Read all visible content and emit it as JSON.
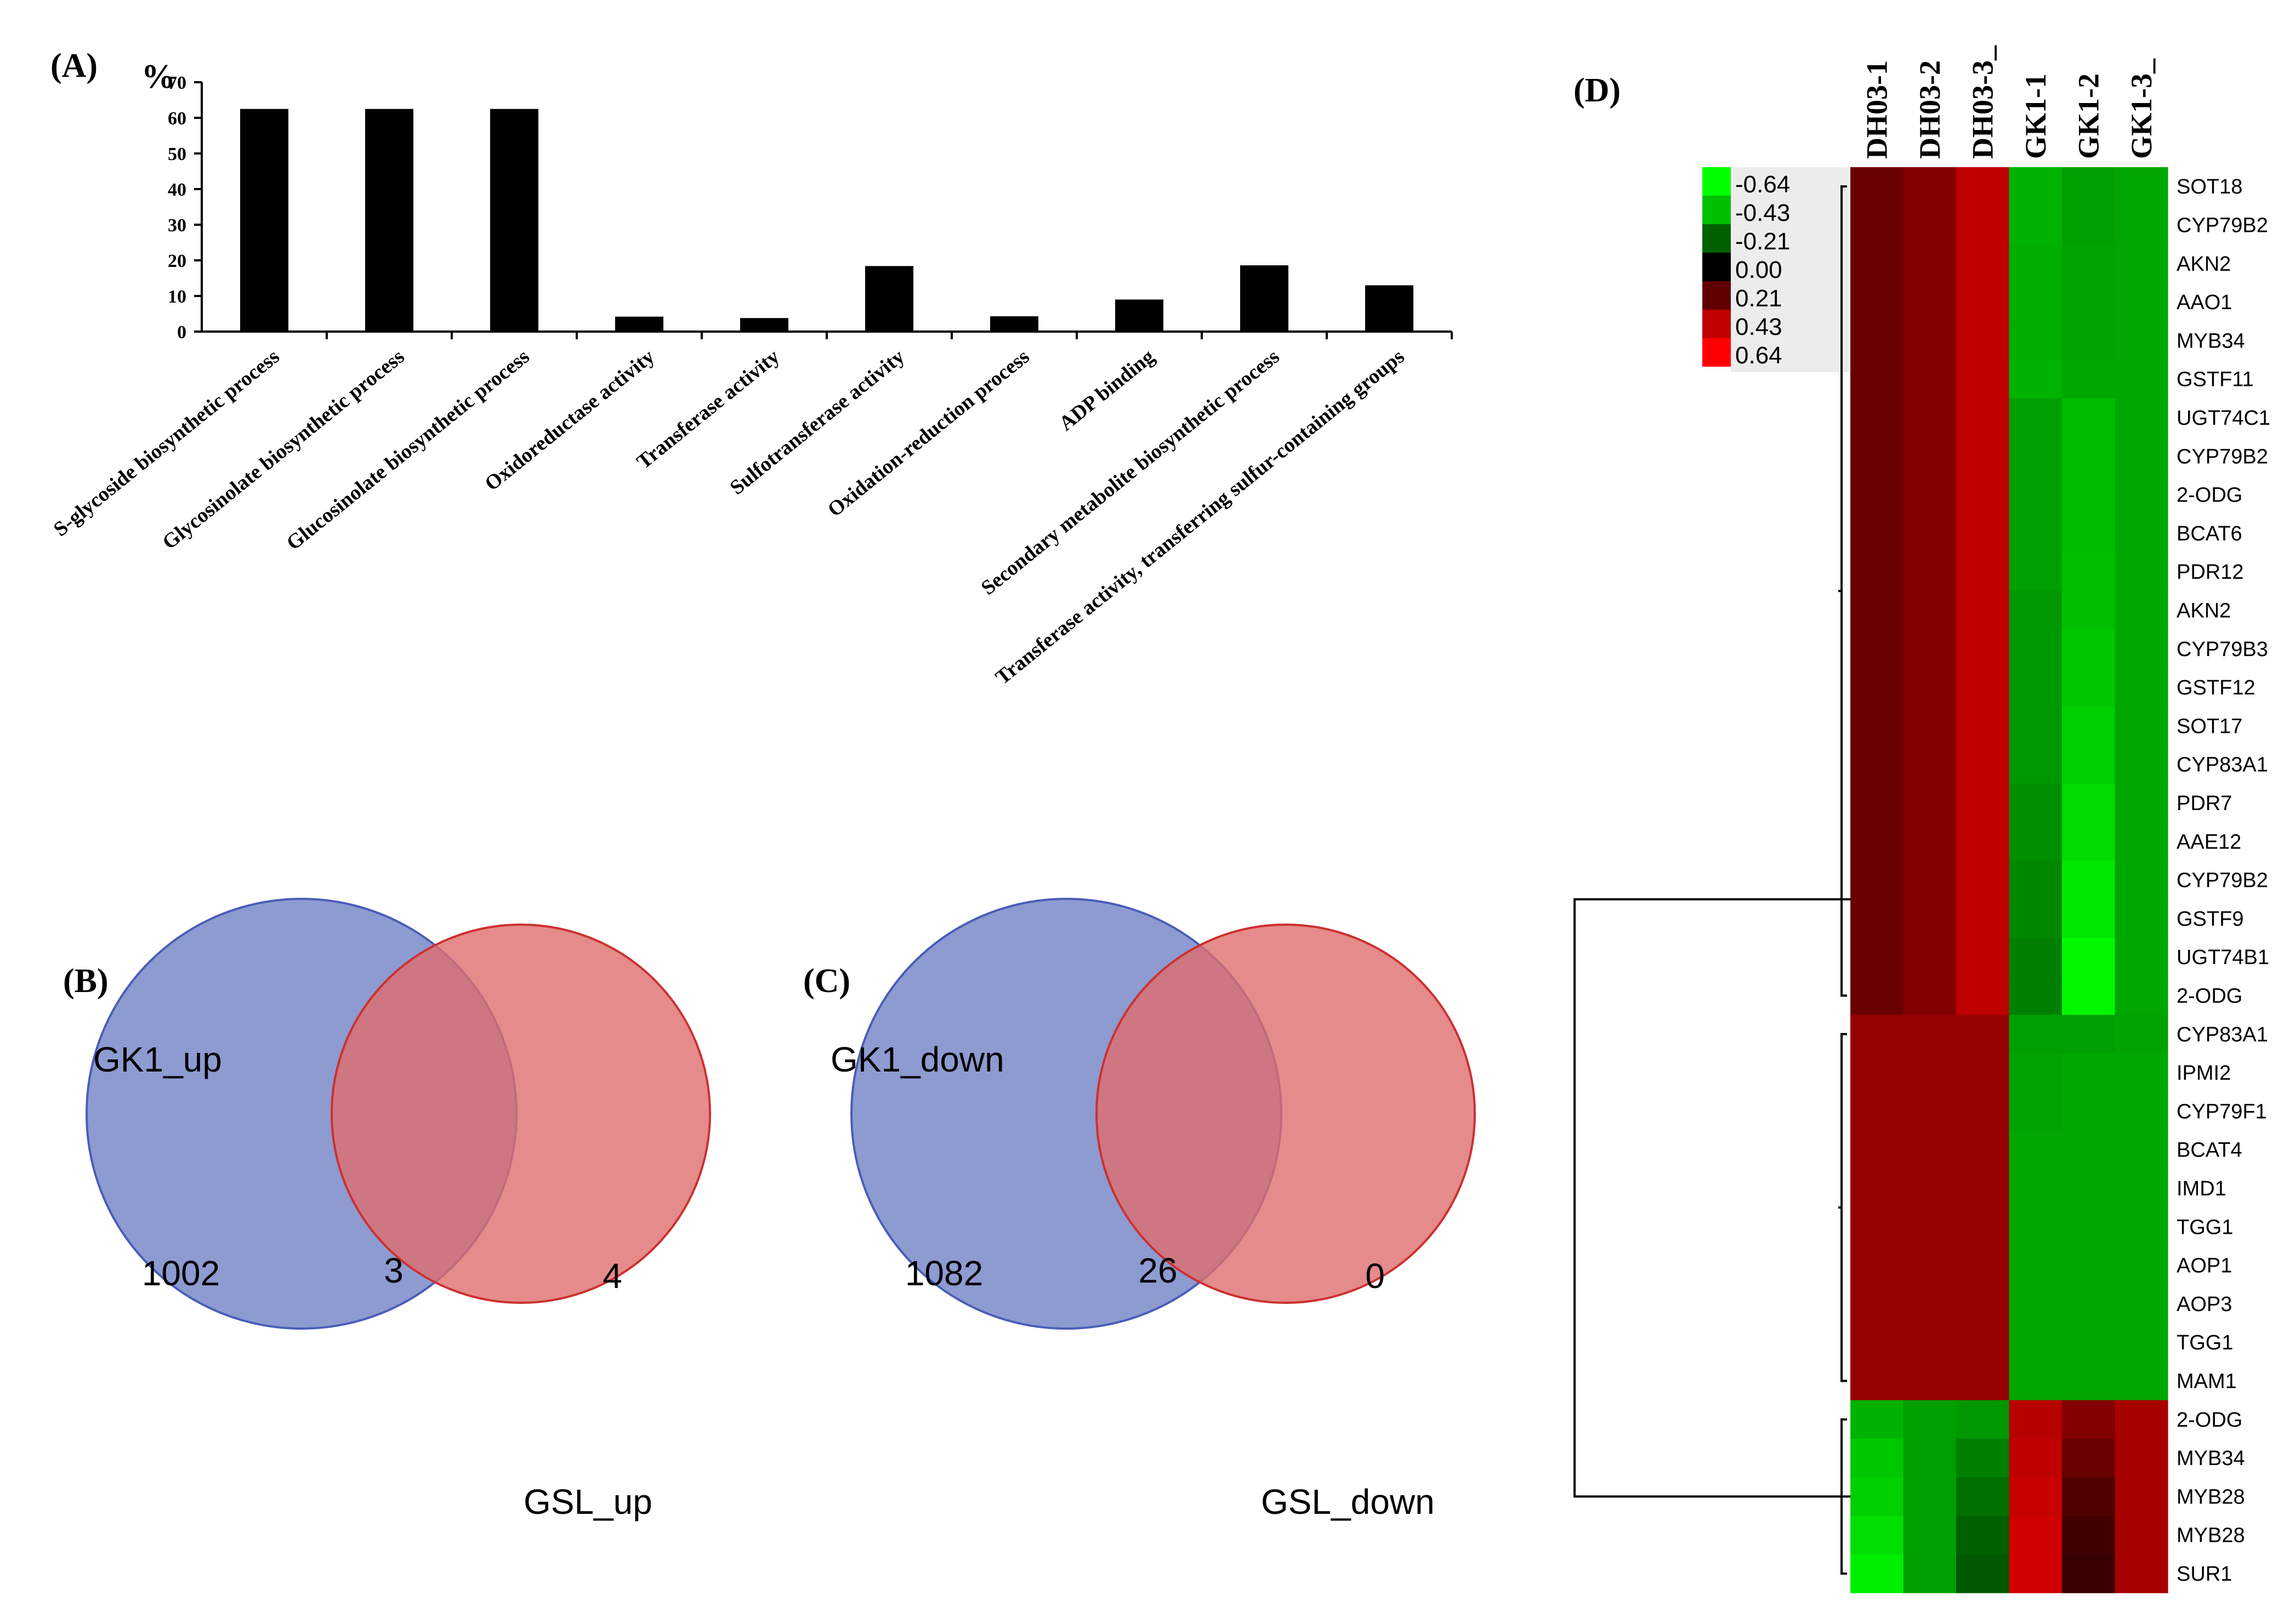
{
  "chart_data": [
    {
      "panel": "(A)",
      "type": "bar",
      "ylabel": "%",
      "ylim": [
        0,
        70
      ],
      "yticks": [
        0,
        10,
        20,
        30,
        40,
        50,
        60,
        70
      ],
      "categories": [
        "S-glycoside biosynthetic process",
        "Glycosinolate biosynthetic process",
        "Glucosinolate biosynthetic process",
        "Oxidoreductase activity",
        "Transferase activity",
        "Sulfotransferase activity",
        "Oxidation-reduction process",
        "ADP binding",
        "Secondary metabolite biosynthetic process",
        "Transferase activity, transferring sulfur-containing groups"
      ],
      "values": [
        62.5,
        62.5,
        62.5,
        4.2,
        3.8,
        18.4,
        4.3,
        9.0,
        18.6,
        13.0
      ]
    },
    {
      "panel": "(B)",
      "type": "venn",
      "sets": [
        "GK1_up",
        "GSL_up"
      ],
      "only_left": 1002,
      "overlap": 3,
      "only_right": 4
    },
    {
      "panel": "(C)",
      "type": "venn",
      "sets": [
        "GK1_down",
        "GSL_down"
      ],
      "only_left": 1082,
      "overlap": 26,
      "only_right": 0
    },
    {
      "panel": "(D)",
      "type": "heatmap",
      "columns": [
        "DH03-1",
        "DH03-2",
        "DH03-3_",
        "GK1-1",
        "GK1-2",
        "GK1-3_"
      ],
      "rows": [
        "SOT18",
        "CYP79B2",
        "AKN2",
        "AAO1",
        "MYB34",
        "GSTF11",
        "UGT74C1",
        "CYP79B2",
        "2-ODG",
        "BCAT6",
        "PDR12",
        "AKN2",
        "CYP79B3",
        "GSTF12",
        "SOT17",
        "CYP83A1",
        "PDR7",
        "AAE12",
        "CYP79B2",
        "GSTF9",
        "UGT74B1",
        "2-ODG",
        "CYP83A1",
        "IPMI2",
        "CYP79F1",
        "BCAT4",
        "IMD1",
        "TGG1",
        "AOP1",
        "AOP3",
        "TGG1",
        "MAM1",
        "2-ODG",
        "MYB34",
        "MYB28",
        "MYB28",
        "SUR1"
      ],
      "legend_labels": [
        "-0.64",
        "-0.43",
        "-0.21",
        "0.00",
        "0.21",
        "0.43",
        "0.64"
      ],
      "legend_colors": [
        "#00ff00",
        "#00c000",
        "#006000",
        "#000000",
        "#600000",
        "#c00000",
        "#ff0000"
      ],
      "values": [
        [
          0.26,
          0.33,
          0.48,
          -0.45,
          -0.4,
          -0.42
        ],
        [
          0.26,
          0.33,
          0.48,
          -0.45,
          -0.4,
          -0.42
        ],
        [
          0.26,
          0.33,
          0.48,
          -0.44,
          -0.41,
          -0.42
        ],
        [
          0.26,
          0.33,
          0.48,
          -0.44,
          -0.41,
          -0.42
        ],
        [
          0.26,
          0.33,
          0.48,
          -0.44,
          -0.41,
          -0.42
        ],
        [
          0.26,
          0.33,
          0.48,
          -0.45,
          -0.42,
          -0.42
        ],
        [
          0.26,
          0.33,
          0.48,
          -0.4,
          -0.47,
          -0.42
        ],
        [
          0.26,
          0.33,
          0.48,
          -0.4,
          -0.47,
          -0.42
        ],
        [
          0.26,
          0.33,
          0.48,
          -0.4,
          -0.47,
          -0.42
        ],
        [
          0.26,
          0.33,
          0.48,
          -0.4,
          -0.47,
          -0.42
        ],
        [
          0.26,
          0.33,
          0.48,
          -0.4,
          -0.48,
          -0.42
        ],
        [
          0.26,
          0.33,
          0.48,
          -0.38,
          -0.48,
          -0.42
        ],
        [
          0.26,
          0.33,
          0.48,
          -0.38,
          -0.5,
          -0.42
        ],
        [
          0.26,
          0.33,
          0.48,
          -0.38,
          -0.5,
          -0.42
        ],
        [
          0.26,
          0.33,
          0.48,
          -0.38,
          -0.52,
          -0.42
        ],
        [
          0.26,
          0.33,
          0.48,
          -0.38,
          -0.52,
          -0.42
        ],
        [
          0.26,
          0.33,
          0.48,
          -0.36,
          -0.55,
          -0.42
        ],
        [
          0.26,
          0.33,
          0.48,
          -0.36,
          -0.55,
          -0.42
        ],
        [
          0.26,
          0.33,
          0.48,
          -0.34,
          -0.58,
          -0.42
        ],
        [
          0.26,
          0.33,
          0.48,
          -0.34,
          -0.58,
          -0.42
        ],
        [
          0.26,
          0.33,
          0.48,
          -0.32,
          -0.62,
          -0.42
        ],
        [
          0.26,
          0.33,
          0.48,
          -0.32,
          -0.62,
          -0.42
        ],
        [
          0.38,
          0.38,
          0.38,
          -0.4,
          -0.4,
          -0.41
        ],
        [
          0.38,
          0.38,
          0.38,
          -0.41,
          -0.42,
          -0.42
        ],
        [
          0.38,
          0.38,
          0.38,
          -0.41,
          -0.42,
          -0.42
        ],
        [
          0.38,
          0.38,
          0.38,
          -0.42,
          -0.42,
          -0.42
        ],
        [
          0.38,
          0.38,
          0.38,
          -0.42,
          -0.42,
          -0.42
        ],
        [
          0.38,
          0.38,
          0.38,
          -0.42,
          -0.42,
          -0.42
        ],
        [
          0.38,
          0.38,
          0.38,
          -0.42,
          -0.42,
          -0.42
        ],
        [
          0.38,
          0.38,
          0.38,
          -0.42,
          -0.42,
          -0.42
        ],
        [
          0.38,
          0.38,
          0.38,
          -0.42,
          -0.42,
          -0.42
        ],
        [
          0.38,
          0.38,
          0.38,
          -0.42,
          -0.42,
          -0.42
        ],
        [
          -0.45,
          -0.4,
          -0.38,
          0.46,
          0.33,
          0.42
        ],
        [
          -0.5,
          -0.4,
          -0.32,
          0.48,
          0.26,
          0.42
        ],
        [
          -0.52,
          -0.4,
          -0.28,
          0.5,
          0.2,
          0.42
        ],
        [
          -0.56,
          -0.4,
          -0.24,
          0.52,
          0.16,
          0.42
        ],
        [
          -0.6,
          -0.4,
          -0.22,
          0.52,
          0.14,
          0.42
        ]
      ]
    }
  ]
}
